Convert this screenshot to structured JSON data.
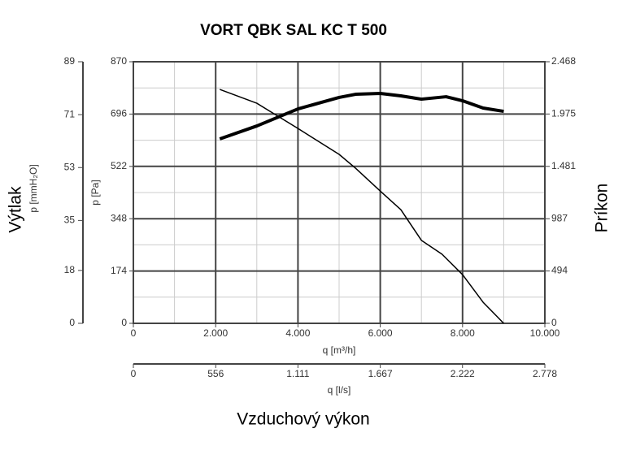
{
  "chart_data": {
    "type": "line",
    "title": "VORT QBK SAL KC T 500",
    "xlabel": "q [m³/h]",
    "xlim": [
      0,
      10000
    ],
    "xticks": [
      0,
      {
        "value": 2000,
        "label": "2.000"
      },
      {
        "value": 4000,
        "label": "4.000"
      },
      {
        "value": 6000,
        "label": "6.000"
      },
      {
        "value": 8000,
        "label": "8.000"
      },
      {
        "value": 10000,
        "label": "10.000"
      }
    ],
    "x2label": "q [l/s]",
    "x2lim": [
      0,
      2778
    ],
    "x2ticks": [
      0,
      556,
      {
        "value": 1111,
        "label": "1.111"
      },
      {
        "value": 1667,
        "label": "1.667"
      },
      {
        "value": 2222,
        "label": "2.222"
      },
      {
        "value": 2778,
        "label": "2.778"
      }
    ],
    "xcaption": "Vzduchový výkon",
    "ylabel": "p [Pa]",
    "ylim": [
      0,
      870
    ],
    "yticks": [
      0,
      174,
      348,
      522,
      696,
      870
    ],
    "y3label": "p [mmH₂O]",
    "y3lim": [
      0,
      89
    ],
    "y3ticks": [
      0,
      18,
      35,
      53,
      71,
      89
    ],
    "ycaption": "Výtlak",
    "y2label": "Príkon",
    "y2lim": [
      0,
      2468
    ],
    "y2ticks": [
      0,
      494,
      987,
      {
        "value": 1481,
        "label": "1.481"
      },
      {
        "value": 1975,
        "label": "1.975"
      },
      {
        "value": 2468,
        "label": "2.468"
      }
    ],
    "grid": true,
    "series": [
      {
        "color": "#000000",
        "width": 1.5,
        "x": [
          2100,
          3000,
          4000,
          5000,
          5400,
          6000,
          6500,
          7000,
          7500,
          8000,
          8500,
          9000
        ],
        "values": [
          778,
          732,
          648,
          562,
          516,
          440,
          378,
          276,
          230,
          162,
          70,
          0
        ]
      },
      {
        "color": "#000000",
        "width": 4,
        "axis": "y2",
        "x": [
          2100,
          3000,
          4000,
          5000,
          5400,
          6000,
          6500,
          7000,
          7600,
          8000,
          8500,
          9000
        ],
        "values": [
          1740,
          1862,
          2023,
          2131,
          2161,
          2169,
          2146,
          2115,
          2138,
          2100,
          2031,
          2000
        ]
      }
    ]
  }
}
